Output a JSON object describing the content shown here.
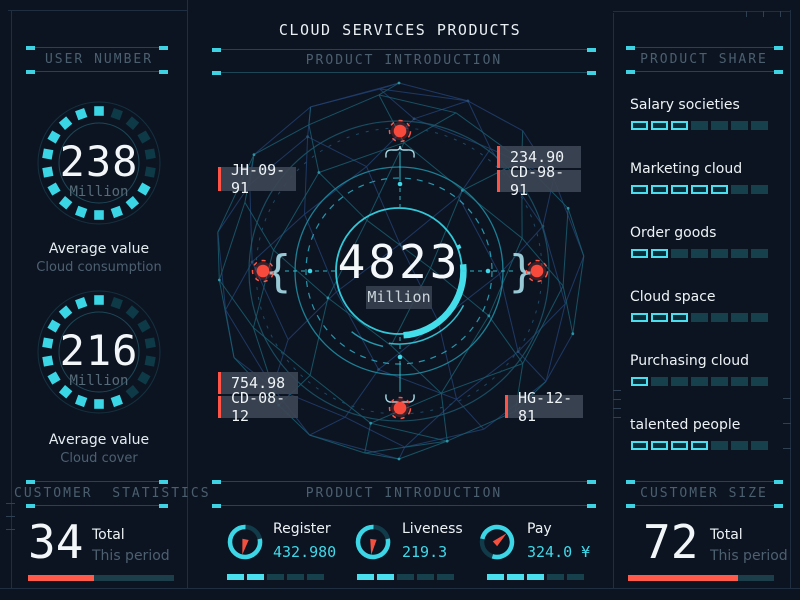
{
  "title": "CLOUD SERVICES PRODUCTS",
  "left_panel": {
    "header": "USER NUMBER",
    "gauges": [
      {
        "value": "238",
        "unit": "Million",
        "caption": "Average value",
        "subcaption": "Cloud consumption",
        "ring": {
          "segments": 18,
          "dim_from_deg": -78,
          "dim_to_deg": 18
        }
      },
      {
        "value": "216",
        "unit": "Million",
        "caption": "Average value",
        "subcaption": "Cloud cover",
        "ring": {
          "segments": 18,
          "dim_from_deg": -78,
          "dim_to_deg": 66
        }
      }
    ],
    "statistics": {
      "header": "CUSTOMER  STATISTICS",
      "value": "34",
      "label": "Total",
      "sublabel": "This period",
      "progress_pct": 45
    }
  },
  "center_panel": {
    "header_top": "PRODUCT INTRODUCTION",
    "header_bottom": "PRODUCT INTRODUCTION",
    "globe": {
      "value": "4823",
      "unit": "Million",
      "callouts": {
        "top_left": "JH-09-91",
        "right_1": "234.90",
        "right_2": "CD-98-91",
        "bottom_left_1": "754.98",
        "bottom_left_2": "CD-08-12",
        "bottom_right": "HG-12-81"
      }
    },
    "kpis": [
      {
        "label": "Register",
        "value": "432.980",
        "segments_lit": 2,
        "segments_total": 5,
        "gauge": {
          "gap_from_deg": -88,
          "gap_to_deg": -12,
          "needle_deg": 102
        }
      },
      {
        "label": "Liveness",
        "value": "219.3",
        "segments_lit": 2,
        "segments_total": 5,
        "gauge": {
          "gap_from_deg": -88,
          "gap_to_deg": -12,
          "needle_deg": 98
        }
      },
      {
        "label": "Pay",
        "value": "324.0 ¥",
        "segments_lit": 3,
        "segments_total": 5,
        "gauge": {
          "gap_from_deg": 108,
          "gap_to_deg": 192,
          "needle_deg": -42
        }
      }
    ]
  },
  "right_panel": {
    "header": "PRODUCT SHARE",
    "items": [
      {
        "label": "Salary societies",
        "segments_lit": 3,
        "segments_total": 7
      },
      {
        "label": "Marketing cloud",
        "segments_lit": 5,
        "segments_total": 7
      },
      {
        "label": "Order goods",
        "segments_lit": 2,
        "segments_total": 7
      },
      {
        "label": "Cloud space",
        "segments_lit": 3,
        "segments_total": 7
      },
      {
        "label": "Purchasing cloud",
        "segments_lit": 1,
        "segments_total": 7
      },
      {
        "label": "talented people",
        "segments_lit": 4,
        "segments_total": 7
      }
    ],
    "customer_size": {
      "header": "CUSTOMER SIZE",
      "value": "72",
      "label": "Total",
      "sublabel": "This period",
      "progress_pct": 75
    }
  },
  "colors": {
    "background": "#0c1422",
    "accent_cyan": "#3ed5e5",
    "accent_red": "#ff5348",
    "text_primary": "#eef3f6",
    "text_dim": "#4d6070",
    "panel_line": "#202e42"
  }
}
